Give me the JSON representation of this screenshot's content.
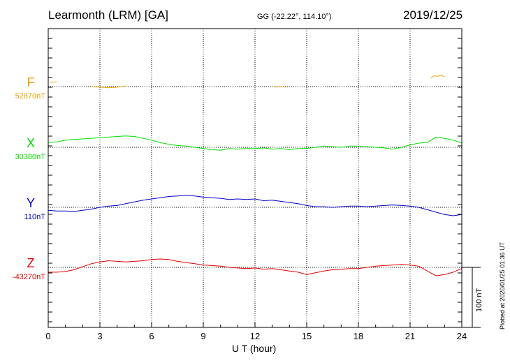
{
  "header": {
    "station": "Learmonth (LRM)  [GA]",
    "coords": "GG (-22.22°, 114.10°)",
    "date": "2019/12/25"
  },
  "footer": {
    "plotted": "Plotted at 2020/01/25 01:36 UT"
  },
  "scale_bar": {
    "label": "100 nT",
    "value": 100,
    "unit": "nT"
  },
  "colors": {
    "F": "#f0a000",
    "X": "#00dd00",
    "Y": "#0000cc",
    "Z": "#e00000"
  },
  "chart_data": {
    "type": "line",
    "xlabel": "U T (hour)",
    "xlim": [
      0,
      24
    ],
    "x_ticks": [
      0,
      3,
      6,
      9,
      12,
      15,
      18,
      21,
      24
    ],
    "grid": true,
    "units": "nT",
    "components": [
      {
        "name": "F",
        "baseline_label": "52870nT",
        "baseline": 52870,
        "color": "#f0a000",
        "segments": [
          [
            [
              0.1,
              7
            ],
            [
              0.5,
              8
            ]
          ],
          [
            [
              2.5,
              0
            ],
            [
              3.0,
              -1
            ],
            [
              3.5,
              -2
            ],
            [
              4.0,
              -1
            ],
            [
              4.5,
              1
            ]
          ],
          [
            [
              13.1,
              -1
            ],
            [
              13.5,
              0
            ],
            [
              13.8,
              -1
            ]
          ],
          [
            [
              22.2,
              14
            ],
            [
              22.4,
              18
            ],
            [
              22.6,
              17
            ],
            [
              22.8,
              19
            ],
            [
              23.0,
              16
            ]
          ]
        ]
      },
      {
        "name": "X",
        "baseline_label": "30380nT",
        "baseline": 30380,
        "color": "#00dd00",
        "series": [
          [
            0,
            8
          ],
          [
            0.5,
            9
          ],
          [
            1,
            12
          ],
          [
            1.5,
            13
          ],
          [
            2,
            14
          ],
          [
            2.5,
            15
          ],
          [
            3,
            16
          ],
          [
            3.5,
            17
          ],
          [
            4,
            18
          ],
          [
            4.5,
            19
          ],
          [
            5,
            18
          ],
          [
            5.5,
            15
          ],
          [
            6,
            12
          ],
          [
            6.5,
            8
          ],
          [
            7,
            5
          ],
          [
            7.5,
            3
          ],
          [
            8,
            2
          ],
          [
            8.5,
            0
          ],
          [
            9,
            -2
          ],
          [
            9.5,
            -4
          ],
          [
            10,
            -5
          ],
          [
            10.5,
            -2
          ],
          [
            11,
            -3
          ],
          [
            11.5,
            -2
          ],
          [
            12,
            -2
          ],
          [
            12.5,
            -1
          ],
          [
            13,
            -3
          ],
          [
            13.5,
            -2
          ],
          [
            14,
            -4
          ],
          [
            14.5,
            -2
          ],
          [
            15,
            -2
          ],
          [
            15.5,
            0
          ],
          [
            16,
            2
          ],
          [
            16.5,
            1
          ],
          [
            17,
            0
          ],
          [
            17.5,
            2
          ],
          [
            18,
            2
          ],
          [
            18.5,
            1
          ],
          [
            19,
            0
          ],
          [
            19.5,
            -1
          ],
          [
            20,
            -3
          ],
          [
            20.5,
            0
          ],
          [
            21,
            4
          ],
          [
            21.5,
            7
          ],
          [
            22,
            8
          ],
          [
            22.5,
            17
          ],
          [
            23,
            15
          ],
          [
            23.5,
            12
          ],
          [
            24,
            7
          ]
        ]
      },
      {
        "name": "Y",
        "baseline_label": "110nT",
        "baseline": 110,
        "color": "#0000cc",
        "series": [
          [
            0,
            -5
          ],
          [
            0.5,
            -6
          ],
          [
            1,
            -6
          ],
          [
            1.5,
            -7
          ],
          [
            2,
            -5
          ],
          [
            2.5,
            -3
          ],
          [
            3,
            0
          ],
          [
            3.5,
            2
          ],
          [
            4,
            3
          ],
          [
            4.5,
            6
          ],
          [
            5,
            9
          ],
          [
            5.5,
            12
          ],
          [
            6,
            14
          ],
          [
            6.5,
            16
          ],
          [
            7,
            18
          ],
          [
            7.5,
            19
          ],
          [
            8,
            20
          ],
          [
            8.5,
            19
          ],
          [
            9,
            17
          ],
          [
            9.5,
            16
          ],
          [
            10,
            15
          ],
          [
            10.5,
            13
          ],
          [
            11,
            14
          ],
          [
            11.5,
            13
          ],
          [
            12,
            14
          ],
          [
            12.5,
            11
          ],
          [
            13,
            12
          ],
          [
            13.5,
            10
          ],
          [
            14,
            8
          ],
          [
            14.5,
            6
          ],
          [
            15,
            3
          ],
          [
            15.5,
            1
          ],
          [
            16,
            1
          ],
          [
            16.5,
            0
          ],
          [
            17,
            1
          ],
          [
            17.5,
            2
          ],
          [
            18,
            2
          ],
          [
            18.5,
            1
          ],
          [
            19,
            2
          ],
          [
            19.5,
            3
          ],
          [
            20,
            4
          ],
          [
            20.5,
            3
          ],
          [
            21,
            2
          ],
          [
            21.5,
            0
          ],
          [
            22,
            -4
          ],
          [
            22.5,
            -8
          ],
          [
            23,
            -12
          ],
          [
            23.5,
            -14
          ],
          [
            24,
            -12
          ]
        ]
      },
      {
        "name": "Z",
        "baseline_label": "-43270nT",
        "baseline": -43270,
        "color": "#e00000",
        "series": [
          [
            0,
            -8
          ],
          [
            0.5,
            -8
          ],
          [
            1,
            -7
          ],
          [
            1.5,
            -4
          ],
          [
            2,
            1
          ],
          [
            2.5,
            6
          ],
          [
            3,
            9
          ],
          [
            3.5,
            11
          ],
          [
            4,
            10
          ],
          [
            4.5,
            9
          ],
          [
            5,
            10
          ],
          [
            5.5,
            11
          ],
          [
            6,
            13
          ],
          [
            6.5,
            14
          ],
          [
            7,
            13
          ],
          [
            7.5,
            10
          ],
          [
            8,
            8
          ],
          [
            8.5,
            6
          ],
          [
            9,
            4
          ],
          [
            9.5,
            3
          ],
          [
            10,
            2
          ],
          [
            10.5,
            0
          ],
          [
            11,
            -1
          ],
          [
            11.5,
            -2
          ],
          [
            12,
            -1
          ],
          [
            12.5,
            -3
          ],
          [
            13,
            -2
          ],
          [
            13.5,
            -4
          ],
          [
            14,
            -6
          ],
          [
            14.5,
            -8
          ],
          [
            15,
            -12
          ],
          [
            15.5,
            -9
          ],
          [
            16,
            -6
          ],
          [
            16.5,
            -4
          ],
          [
            17,
            -3
          ],
          [
            17.5,
            -2
          ],
          [
            18,
            -2
          ],
          [
            18.5,
            0
          ],
          [
            19,
            2
          ],
          [
            19.5,
            3
          ],
          [
            20,
            4
          ],
          [
            20.5,
            5
          ],
          [
            21,
            4
          ],
          [
            21.5,
            2
          ],
          [
            22,
            -6
          ],
          [
            22.5,
            -14
          ],
          [
            23,
            -12
          ],
          [
            23.5,
            -8
          ],
          [
            24,
            -2
          ]
        ]
      }
    ]
  }
}
